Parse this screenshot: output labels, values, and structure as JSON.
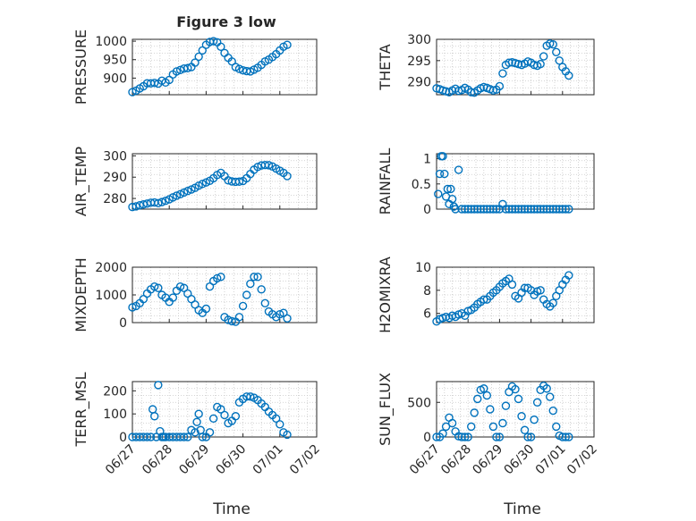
{
  "figure": {
    "title": "Figure 3 low",
    "marker_color": "#0072BD",
    "x_tick_labels": [
      "06/27",
      "06/28",
      "06/29",
      "06/30",
      "07/01",
      "07/02"
    ],
    "x_label": "Time"
  },
  "chart_data": [
    {
      "type": "scatter",
      "name": "pressure",
      "title": "Figure 3 low",
      "ylabel": "PRESSURE",
      "xlabel": "",
      "yticks": [
        900,
        950,
        1000
      ],
      "ylim": [
        855,
        1005
      ],
      "xlim": [
        0,
        5
      ],
      "grid": true,
      "x": [
        0.0,
        0.1,
        0.2,
        0.3,
        0.4,
        0.5,
        0.6,
        0.7,
        0.8,
        0.9,
        1.0,
        1.1,
        1.2,
        1.3,
        1.4,
        1.5,
        1.6,
        1.7,
        1.8,
        1.9,
        2.0,
        2.1,
        2.2,
        2.3,
        2.4,
        2.5,
        2.6,
        2.7,
        2.8,
        2.9,
        3.0,
        3.1,
        3.2,
        3.3,
        3.4,
        3.5,
        3.6,
        3.7,
        3.8,
        3.9,
        4.0,
        4.1,
        4.2
      ],
      "y": [
        862,
        866,
        872,
        878,
        886,
        886,
        887,
        885,
        893,
        888,
        895,
        910,
        918,
        922,
        926,
        927,
        930,
        942,
        958,
        975,
        990,
        998,
        1000,
        997,
        985,
        968,
        955,
        945,
        930,
        925,
        921,
        919,
        918,
        923,
        928,
        936,
        945,
        950,
        957,
        965,
        975,
        985,
        990
      ]
    },
    {
      "type": "scatter",
      "name": "theta",
      "title": "",
      "ylabel": "THETA",
      "xlabel": "",
      "yticks": [
        290,
        295,
        300
      ],
      "ylim": [
        287,
        300
      ],
      "xlim": [
        0,
        5
      ],
      "grid": true,
      "x": [
        0.0,
        0.1,
        0.2,
        0.3,
        0.4,
        0.5,
        0.6,
        0.7,
        0.8,
        0.9,
        1.0,
        1.1,
        1.2,
        1.3,
        1.4,
        1.5,
        1.6,
        1.7,
        1.8,
        1.9,
        2.0,
        2.1,
        2.2,
        2.3,
        2.4,
        2.5,
        2.6,
        2.7,
        2.8,
        2.9,
        3.0,
        3.1,
        3.2,
        3.3,
        3.4,
        3.5,
        3.6,
        3.7,
        3.8,
        3.9,
        4.0,
        4.1,
        4.2
      ],
      "y": [
        288.5,
        288.3,
        288.0,
        287.8,
        287.6,
        288.0,
        288.4,
        287.9,
        288.1,
        288.6,
        288.2,
        287.6,
        287.5,
        288.0,
        288.5,
        288.8,
        288.6,
        288.3,
        288.0,
        288.2,
        289.0,
        292.0,
        294.0,
        294.5,
        294.6,
        294.4,
        294.2,
        294.0,
        294.3,
        294.8,
        294.5,
        294.0,
        293.8,
        294.2,
        296.0,
        298.5,
        299.0,
        298.8,
        297.0,
        295.0,
        293.5,
        292.5,
        291.5
      ]
    },
    {
      "type": "scatter",
      "name": "air_temp",
      "title": "",
      "ylabel": "AIR_TEMP",
      "xlabel": "",
      "yticks": [
        280,
        290,
        300
      ],
      "ylim": [
        275,
        301
      ],
      "xlim": [
        0,
        5
      ],
      "grid": true,
      "x": [
        0.0,
        0.1,
        0.2,
        0.3,
        0.4,
        0.5,
        0.6,
        0.7,
        0.8,
        0.9,
        1.0,
        1.1,
        1.2,
        1.3,
        1.4,
        1.5,
        1.6,
        1.7,
        1.8,
        1.9,
        2.0,
        2.1,
        2.2,
        2.3,
        2.4,
        2.5,
        2.6,
        2.7,
        2.8,
        2.9,
        3.0,
        3.1,
        3.2,
        3.3,
        3.4,
        3.5,
        3.6,
        3.7,
        3.8,
        3.9,
        4.0,
        4.1,
        4.2
      ],
      "y": [
        276.0,
        276.3,
        276.8,
        277.2,
        277.6,
        278.0,
        278.1,
        277.8,
        278.3,
        278.9,
        279.6,
        280.5,
        281.3,
        282.0,
        282.8,
        283.5,
        284.2,
        285.0,
        286.0,
        286.8,
        287.5,
        288.3,
        289.5,
        291.0,
        292.0,
        290.5,
        288.5,
        288.0,
        287.8,
        287.9,
        288.2,
        289.5,
        291.5,
        293.5,
        294.8,
        295.5,
        295.7,
        295.6,
        295.0,
        294.0,
        293.0,
        292.0,
        290.5
      ]
    },
    {
      "type": "scatter",
      "name": "rainfall",
      "title": "",
      "ylabel": "RAINFALL",
      "xlabel": "",
      "yticks": [
        0,
        0.5,
        1
      ],
      "ylim": [
        0,
        1.1
      ],
      "xlim": [
        0,
        5
      ],
      "grid": true,
      "x": [
        0.05,
        0.1,
        0.15,
        0.2,
        0.25,
        0.3,
        0.35,
        0.4,
        0.45,
        0.5,
        0.55,
        0.6,
        0.7,
        0.8,
        0.9,
        1.0,
        1.1,
        1.2,
        1.3,
        1.4,
        1.5,
        1.6,
        1.7,
        1.8,
        1.9,
        2.0,
        2.1,
        2.2,
        2.3,
        2.4,
        2.5,
        2.6,
        2.7,
        2.8,
        2.9,
        3.0,
        3.1,
        3.2,
        3.3,
        3.4,
        3.5,
        3.6,
        3.7,
        3.8,
        3.9,
        4.0,
        4.1,
        4.2
      ],
      "y": [
        0.3,
        0.7,
        1.05,
        1.05,
        0.7,
        0.25,
        0.4,
        0.1,
        0.4,
        0.2,
        0.05,
        0.0,
        0.78,
        0.0,
        0.0,
        0.0,
        0.0,
        0.0,
        0.0,
        0.0,
        0.0,
        0.0,
        0.0,
        0.0,
        0.0,
        0.0,
        0.1,
        0.0,
        0.0,
        0.0,
        0.0,
        0.0,
        0.0,
        0.0,
        0.0,
        0.0,
        0.0,
        0.0,
        0.0,
        0.0,
        0.0,
        0.0,
        0.0,
        0.0,
        0.0,
        0.0,
        0.0,
        0.0
      ]
    },
    {
      "type": "scatter",
      "name": "mixdepth",
      "title": "",
      "ylabel": "MIXDEPTH",
      "xlabel": "",
      "yticks": [
        0,
        1000,
        2000
      ],
      "ylim": [
        0,
        2000
      ],
      "xlim": [
        0,
        5
      ],
      "grid": true,
      "x": [
        0.0,
        0.1,
        0.2,
        0.3,
        0.4,
        0.5,
        0.6,
        0.7,
        0.8,
        0.9,
        1.0,
        1.1,
        1.2,
        1.3,
        1.4,
        1.5,
        1.6,
        1.7,
        1.8,
        1.9,
        2.0,
        2.1,
        2.2,
        2.3,
        2.4,
        2.5,
        2.6,
        2.7,
        2.8,
        2.9,
        3.0,
        3.1,
        3.2,
        3.3,
        3.4,
        3.5,
        3.6,
        3.7,
        3.8,
        3.9,
        4.0,
        4.1,
        4.2
      ],
      "y": [
        550,
        600,
        700,
        850,
        1050,
        1200,
        1300,
        1250,
        1000,
        900,
        750,
        900,
        1150,
        1300,
        1250,
        1050,
        850,
        650,
        450,
        350,
        500,
        1300,
        1500,
        1600,
        1650,
        200,
        100,
        50,
        30,
        200,
        600,
        1000,
        1400,
        1650,
        1650,
        1200,
        700,
        400,
        300,
        200,
        300,
        350,
        150
      ]
    },
    {
      "type": "scatter",
      "name": "h2omixra",
      "title": "",
      "ylabel": "H2OMIXRA",
      "xlabel": "",
      "yticks": [
        6,
        8,
        10
      ],
      "ylim": [
        5.2,
        10
      ],
      "xlim": [
        0,
        5
      ],
      "grid": true,
      "x": [
        0.0,
        0.1,
        0.2,
        0.3,
        0.4,
        0.5,
        0.6,
        0.7,
        0.8,
        0.9,
        1.0,
        1.1,
        1.2,
        1.3,
        1.4,
        1.5,
        1.6,
        1.7,
        1.8,
        1.9,
        2.0,
        2.1,
        2.2,
        2.3,
        2.4,
        2.5,
        2.6,
        2.7,
        2.8,
        2.9,
        3.0,
        3.1,
        3.2,
        3.3,
        3.4,
        3.5,
        3.6,
        3.7,
        3.8,
        3.9,
        4.0,
        4.1,
        4.2
      ],
      "y": [
        5.3,
        5.5,
        5.6,
        5.7,
        5.6,
        5.8,
        5.7,
        5.9,
        6.0,
        5.8,
        6.2,
        6.3,
        6.5,
        6.8,
        7.0,
        7.2,
        7.2,
        7.5,
        7.8,
        8.0,
        8.3,
        8.6,
        8.8,
        9.0,
        8.5,
        7.5,
        7.3,
        7.8,
        8.2,
        8.2,
        8.0,
        7.6,
        7.9,
        8.0,
        7.2,
        6.8,
        6.6,
        6.9,
        7.5,
        8.0,
        8.5,
        8.9,
        9.3
      ]
    },
    {
      "type": "scatter",
      "name": "terr_msl",
      "title": "",
      "ylabel": "TERR_MSL",
      "xlabel": "Time",
      "yticks": [
        0,
        100,
        200
      ],
      "ylim": [
        0,
        240
      ],
      "xlim": [
        0,
        5
      ],
      "grid": true,
      "x": [
        0.0,
        0.1,
        0.2,
        0.3,
        0.4,
        0.5,
        0.55,
        0.6,
        0.65,
        0.7,
        0.75,
        0.8,
        0.85,
        0.9,
        1.0,
        1.1,
        1.2,
        1.3,
        1.4,
        1.5,
        1.6,
        1.7,
        1.75,
        1.8,
        1.85,
        1.9,
        2.0,
        2.1,
        2.2,
        2.3,
        2.4,
        2.5,
        2.6,
        2.7,
        2.8,
        2.9,
        3.0,
        3.1,
        3.2,
        3.3,
        3.4,
        3.5,
        3.6,
        3.7,
        3.8,
        3.9,
        4.0,
        4.1,
        4.2
      ],
      "y": [
        0,
        0,
        0,
        0,
        0,
        0,
        120,
        90,
        0,
        225,
        25,
        0,
        0,
        0,
        0,
        0,
        0,
        0,
        0,
        0,
        30,
        20,
        65,
        100,
        30,
        0,
        0,
        20,
        80,
        130,
        120,
        95,
        60,
        70,
        90,
        150,
        165,
        175,
        175,
        170,
        160,
        145,
        130,
        110,
        95,
        80,
        55,
        20,
        10
      ]
    },
    {
      "type": "scatter",
      "name": "sun_flux",
      "title": "",
      "ylabel": "SUN_FLUX",
      "xlabel": "Time",
      "yticks": [
        0,
        500
      ],
      "ylim": [
        0,
        800
      ],
      "xlim": [
        0,
        5
      ],
      "grid": true,
      "x": [
        0.0,
        0.1,
        0.2,
        0.3,
        0.4,
        0.5,
        0.6,
        0.7,
        0.8,
        0.9,
        1.0,
        1.1,
        1.2,
        1.3,
        1.4,
        1.5,
        1.6,
        1.7,
        1.8,
        1.9,
        2.0,
        2.1,
        2.2,
        2.3,
        2.4,
        2.5,
        2.6,
        2.7,
        2.8,
        2.9,
        3.0,
        3.1,
        3.2,
        3.3,
        3.4,
        3.5,
        3.6,
        3.7,
        3.8,
        3.9,
        4.0,
        4.1,
        4.2
      ],
      "y": [
        0,
        0,
        50,
        150,
        280,
        200,
        80,
        10,
        0,
        0,
        0,
        150,
        350,
        550,
        680,
        700,
        600,
        400,
        150,
        0,
        0,
        200,
        450,
        650,
        730,
        690,
        550,
        300,
        100,
        0,
        0,
        250,
        500,
        680,
        740,
        700,
        580,
        380,
        150,
        20,
        0,
        0,
        0
      ]
    }
  ]
}
